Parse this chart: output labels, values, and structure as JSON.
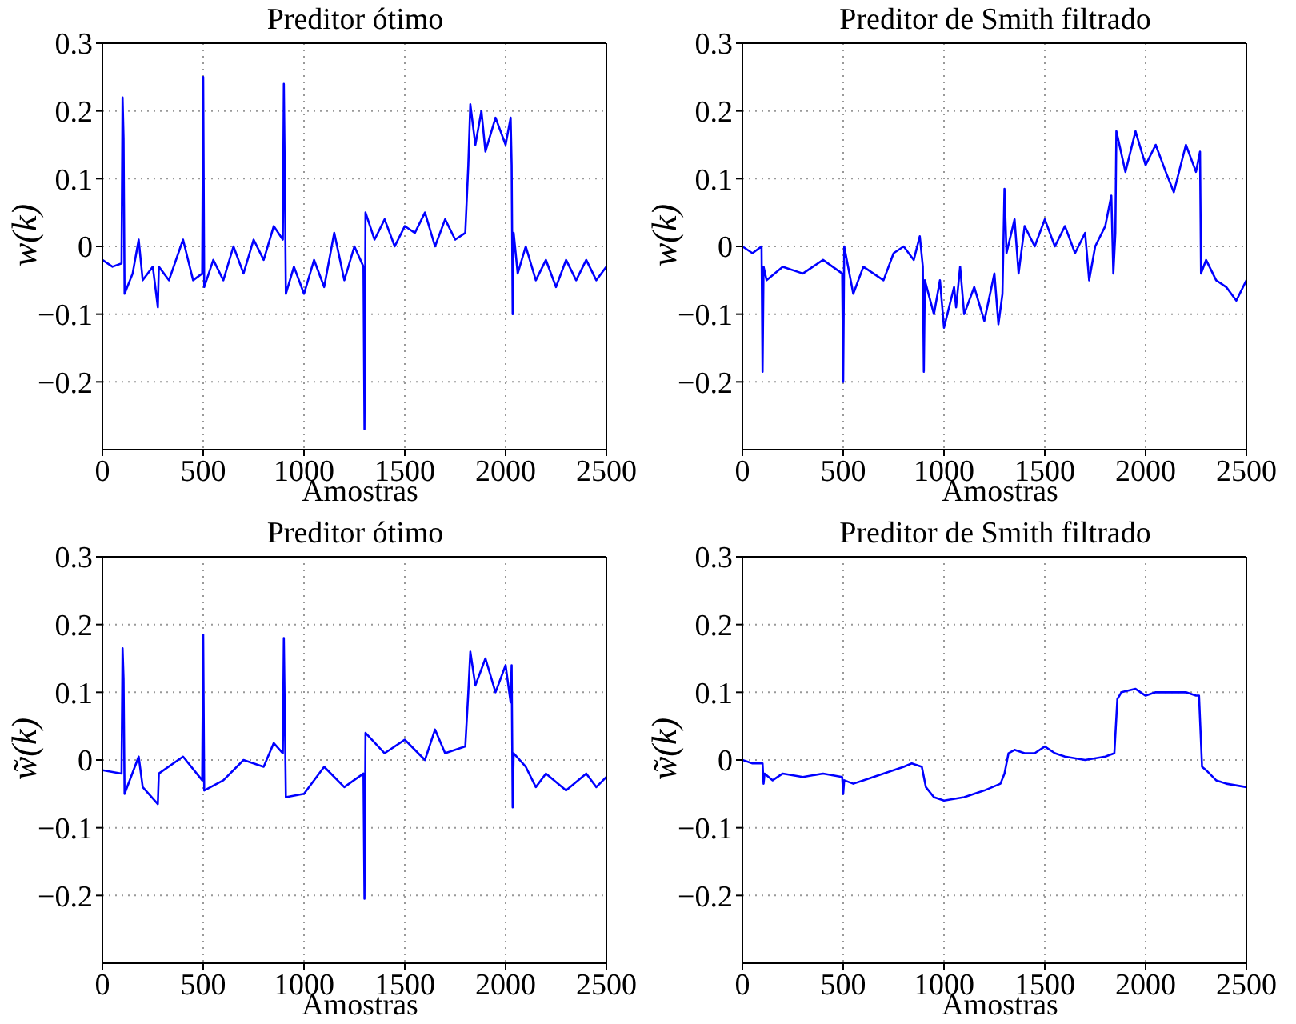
{
  "chart_data": [
    {
      "type": "line",
      "title": "Preditor ótimo",
      "xlabel": "Amostras",
      "ylabel": "w(k)",
      "xlim": [
        0,
        2500
      ],
      "xticks": [
        0,
        500,
        1000,
        1500,
        2000,
        2500
      ],
      "ylim": [
        -0.3,
        0.3
      ],
      "yticks": [
        -0.2,
        -0.1,
        0,
        0.1,
        0.2,
        0.3
      ],
      "grid": true,
      "legend": false,
      "marker": "none",
      "line_style": "solid",
      "series": [
        {
          "color": "#0000ff",
          "x": [
            0,
            50,
            95,
            100,
            105,
            110,
            150,
            180,
            200,
            250,
            275,
            280,
            330,
            400,
            450,
            495,
            500,
            505,
            550,
            600,
            650,
            700,
            750,
            800,
            850,
            895,
            900,
            905,
            910,
            950,
            1000,
            1050,
            1100,
            1150,
            1200,
            1250,
            1295,
            1300,
            1305,
            1350,
            1400,
            1450,
            1500,
            1550,
            1600,
            1650,
            1700,
            1750,
            1800,
            1815,
            1825,
            1850,
            1880,
            1900,
            1950,
            2000,
            2025,
            2030,
            2035,
            2040,
            2060,
            2100,
            2150,
            2200,
            2250,
            2300,
            2350,
            2400,
            2450,
            2500
          ],
          "values": [
            -0.02,
            -0.03,
            -0.025,
            0.22,
            0.16,
            -0.07,
            -0.04,
            0.01,
            -0.05,
            -0.03,
            -0.09,
            -0.03,
            -0.05,
            0.01,
            -0.05,
            -0.04,
            0.25,
            -0.06,
            -0.02,
            -0.05,
            0.0,
            -0.04,
            0.01,
            -0.02,
            0.03,
            0.01,
            0.24,
            0.1,
            -0.07,
            -0.03,
            -0.07,
            -0.02,
            -0.06,
            0.02,
            -0.05,
            0.0,
            -0.03,
            -0.27,
            0.05,
            0.01,
            0.04,
            0.0,
            0.03,
            0.02,
            0.05,
            0.0,
            0.04,
            0.01,
            0.02,
            0.12,
            0.21,
            0.15,
            0.2,
            0.14,
            0.19,
            0.15,
            0.19,
            0.12,
            -0.1,
            0.02,
            -0.04,
            0.0,
            -0.05,
            -0.02,
            -0.06,
            -0.02,
            -0.05,
            -0.02,
            -0.05,
            -0.03
          ]
        }
      ]
    },
    {
      "type": "line",
      "title": "Preditor de Smith filtrado",
      "xlabel": "Amostras",
      "ylabel": "w(k)",
      "xlim": [
        0,
        2500
      ],
      "xticks": [
        0,
        500,
        1000,
        1500,
        2000,
        2500
      ],
      "ylim": [
        -0.3,
        0.3
      ],
      "yticks": [
        -0.2,
        -0.1,
        0,
        0.1,
        0.2,
        0.3
      ],
      "grid": true,
      "legend": false,
      "marker": "none",
      "line_style": "solid",
      "series": [
        {
          "color": "#0000ff",
          "x": [
            0,
            50,
            95,
            100,
            105,
            120,
            200,
            300,
            400,
            495,
            500,
            505,
            550,
            600,
            700,
            750,
            800,
            850,
            880,
            895,
            900,
            905,
            950,
            980,
            1000,
            1050,
            1060,
            1080,
            1100,
            1150,
            1200,
            1250,
            1270,
            1290,
            1300,
            1310,
            1350,
            1370,
            1400,
            1450,
            1500,
            1550,
            1600,
            1650,
            1700,
            1720,
            1750,
            1800,
            1830,
            1840,
            1850,
            1855,
            1900,
            1950,
            2000,
            2050,
            2100,
            2140,
            2200,
            2250,
            2270,
            2275,
            2300,
            2350,
            2400,
            2450,
            2500
          ],
          "values": [
            0.0,
            -0.01,
            0.0,
            -0.185,
            -0.03,
            -0.05,
            -0.03,
            -0.04,
            -0.02,
            -0.04,
            -0.2,
            0.0,
            -0.07,
            -0.03,
            -0.05,
            -0.01,
            0.0,
            -0.02,
            0.015,
            -0.03,
            -0.185,
            -0.05,
            -0.1,
            -0.05,
            -0.12,
            -0.06,
            -0.09,
            -0.03,
            -0.1,
            -0.06,
            -0.11,
            -0.04,
            -0.115,
            -0.07,
            0.085,
            -0.01,
            0.04,
            -0.04,
            0.03,
            0.0,
            0.04,
            0.0,
            0.03,
            -0.01,
            0.02,
            -0.05,
            0.0,
            0.03,
            0.075,
            -0.04,
            0.02,
            0.17,
            0.11,
            0.17,
            0.12,
            0.15,
            0.11,
            0.08,
            0.15,
            0.11,
            0.14,
            -0.04,
            -0.02,
            -0.05,
            -0.06,
            -0.08,
            -0.05
          ]
        }
      ]
    },
    {
      "type": "line",
      "title": "Preditor ótimo",
      "xlabel": "Amostras",
      "ylabel": "w̃(k)",
      "xlim": [
        0,
        2500
      ],
      "xticks": [
        0,
        500,
        1000,
        1500,
        2000,
        2500
      ],
      "ylim": [
        -0.3,
        0.3
      ],
      "yticks": [
        -0.2,
        -0.1,
        0,
        0.1,
        0.2,
        0.3
      ],
      "grid": true,
      "legend": false,
      "marker": "none",
      "line_style": "solid",
      "series": [
        {
          "color": "#0000ff",
          "x": [
            0,
            95,
            100,
            105,
            110,
            180,
            200,
            275,
            280,
            400,
            495,
            500,
            505,
            600,
            700,
            800,
            850,
            895,
            900,
            910,
            1000,
            1100,
            1200,
            1295,
            1300,
            1305,
            1400,
            1500,
            1600,
            1650,
            1700,
            1800,
            1815,
            1825,
            1850,
            1900,
            1950,
            2000,
            2025,
            2030,
            2035,
            2040,
            2100,
            2150,
            2200,
            2300,
            2400,
            2450,
            2500
          ],
          "values": [
            -0.015,
            -0.02,
            0.165,
            0.12,
            -0.05,
            0.005,
            -0.04,
            -0.065,
            -0.02,
            0.005,
            -0.03,
            0.185,
            -0.045,
            -0.03,
            0.0,
            -0.01,
            0.025,
            0.01,
            0.18,
            -0.055,
            -0.05,
            -0.01,
            -0.04,
            -0.02,
            -0.205,
            0.04,
            0.01,
            0.03,
            0.0,
            0.045,
            0.01,
            0.02,
            0.1,
            0.16,
            0.11,
            0.15,
            0.1,
            0.14,
            0.085,
            0.14,
            -0.07,
            0.01,
            -0.01,
            -0.04,
            -0.02,
            -0.045,
            -0.02,
            -0.04,
            -0.025
          ]
        }
      ]
    },
    {
      "type": "line",
      "title": "Preditor de Smith filtrado",
      "xlabel": "Amostras",
      "ylabel": "w̃(k)",
      "xlim": [
        0,
        2500
      ],
      "xticks": [
        0,
        500,
        1000,
        1500,
        2000,
        2500
      ],
      "ylim": [
        -0.3,
        0.3
      ],
      "yticks": [
        -0.2,
        -0.1,
        0,
        0.1,
        0.2,
        0.3
      ],
      "grid": true,
      "legend": false,
      "marker": "none",
      "line_style": "solid",
      "series": [
        {
          "color": "#0000ff",
          "x": [
            0,
            50,
            100,
            105,
            110,
            150,
            200,
            300,
            400,
            495,
            500,
            505,
            550,
            600,
            700,
            800,
            840,
            890,
            910,
            950,
            1000,
            1100,
            1150,
            1200,
            1280,
            1300,
            1320,
            1350,
            1400,
            1450,
            1500,
            1550,
            1600,
            1700,
            1800,
            1845,
            1860,
            1880,
            1950,
            2000,
            2050,
            2100,
            2200,
            2250,
            2265,
            2280,
            2300,
            2350,
            2400,
            2500
          ],
          "values": [
            0.0,
            -0.005,
            -0.005,
            -0.035,
            -0.02,
            -0.03,
            -0.02,
            -0.025,
            -0.02,
            -0.025,
            -0.05,
            -0.03,
            -0.035,
            -0.03,
            -0.02,
            -0.01,
            -0.005,
            -0.01,
            -0.04,
            -0.055,
            -0.06,
            -0.055,
            -0.05,
            -0.045,
            -0.035,
            -0.02,
            0.01,
            0.015,
            0.01,
            0.01,
            0.02,
            0.01,
            0.005,
            0.0,
            0.005,
            0.01,
            0.09,
            0.1,
            0.105,
            0.095,
            0.1,
            0.1,
            0.1,
            0.095,
            0.095,
            -0.01,
            -0.015,
            -0.03,
            -0.035,
            -0.04
          ]
        }
      ]
    }
  ]
}
